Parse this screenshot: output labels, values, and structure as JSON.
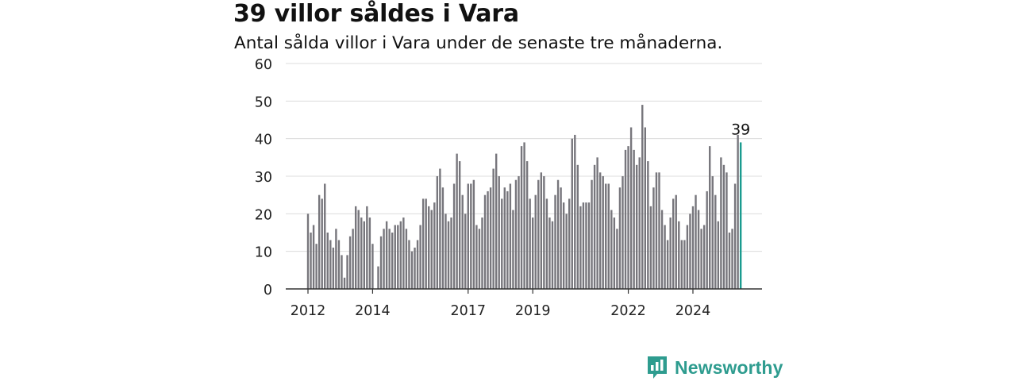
{
  "title": "39 villor såldes i Vara",
  "subtitle": "Antal sålda villor i Vara under de senaste tre månaderna.",
  "brand": {
    "name": "Newsworthy",
    "color": "#2e9c8f"
  },
  "colors": {
    "bar": "#77767c",
    "highlight": "#1a9b8f",
    "grid": "#dcdcdc",
    "axis": "#333333"
  },
  "chart_data": {
    "type": "bar",
    "ylim": [
      0,
      60
    ],
    "yticks": [
      0,
      10,
      20,
      30,
      40,
      50,
      60
    ],
    "xticks": [
      {
        "label": "2012",
        "index": 0
      },
      {
        "label": "2014",
        "index": 23
      },
      {
        "label": "2017",
        "index": 57
      },
      {
        "label": "2019",
        "index": 80
      },
      {
        "label": "2022",
        "index": 114
      },
      {
        "label": "2024",
        "index": 137
      }
    ],
    "highlight_label": "39",
    "values": [
      20,
      15,
      17,
      12,
      25,
      24,
      28,
      15,
      13,
      11,
      16,
      13,
      9,
      3,
      9,
      14,
      16,
      22,
      21,
      19,
      18,
      22,
      19,
      12,
      0,
      6,
      14,
      16,
      18,
      16,
      15,
      17,
      17,
      18,
      19,
      16,
      13,
      10,
      11,
      13,
      17,
      24,
      24,
      22,
      21,
      23,
      30,
      32,
      27,
      20,
      18,
      19,
      28,
      36,
      34,
      25,
      20,
      28,
      28,
      29,
      17,
      16,
      19,
      25,
      26,
      27,
      32,
      36,
      30,
      24,
      27,
      26,
      28,
      21,
      29,
      30,
      38,
      39,
      34,
      24,
      19,
      25,
      29,
      31,
      30,
      24,
      19,
      18,
      25,
      29,
      27,
      23,
      20,
      24,
      40,
      41,
      33,
      22,
      23,
      23,
      23,
      29,
      33,
      35,
      31,
      30,
      28,
      28,
      21,
      19,
      16,
      27,
      30,
      37,
      38,
      43,
      37,
      33,
      35,
      49,
      43,
      34,
      22,
      27,
      31,
      31,
      21,
      17,
      13,
      19,
      24,
      25,
      18,
      13,
      13,
      17,
      20,
      22,
      25,
      21,
      16,
      17,
      26,
      38,
      30,
      25,
      18,
      35,
      33,
      31,
      15,
      16,
      28,
      41,
      39
    ]
  }
}
